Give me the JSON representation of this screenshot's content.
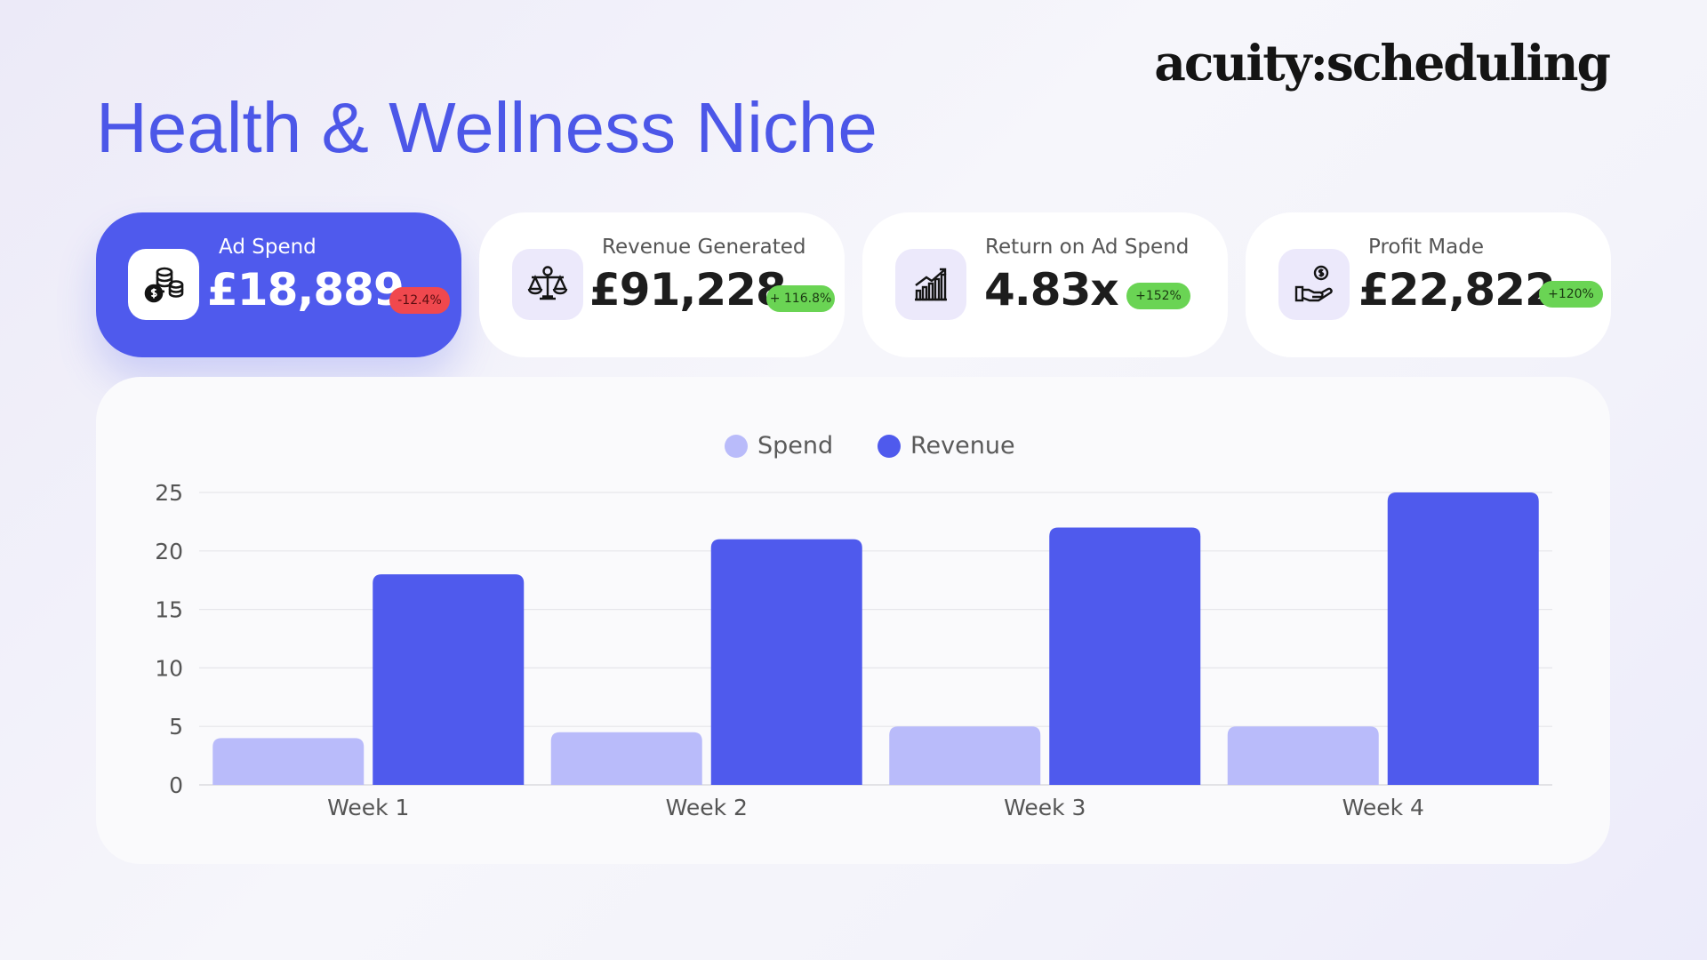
{
  "brand": {
    "logo_text": "acuity:scheduling"
  },
  "page": {
    "title": "Health & Wellness Niche"
  },
  "cards": [
    {
      "label": "Ad Spend",
      "value": "£18,889",
      "badge": "-12.4%",
      "icon": "coins-icon",
      "trend": "negative"
    },
    {
      "label": "Revenue Generated",
      "value": "£91,228",
      "badge": "+ 116.8%",
      "icon": "scales-icon",
      "trend": "positive"
    },
    {
      "label": "Return on Ad Spend",
      "value": "4.83x",
      "badge": "+152%",
      "icon": "growth-chart-icon",
      "trend": "positive"
    },
    {
      "label": "Profit Made",
      "value": "£22,822",
      "badge": "+120%",
      "icon": "hand-money-icon",
      "trend": "positive"
    }
  ],
  "colors": {
    "accent": "#4f5aed",
    "spend": "#b9bbfa",
    "revenue": "#4f5aed",
    "positive_badge": "#6ad454",
    "negative_badge": "#f0484e"
  },
  "chart_data": {
    "type": "bar",
    "categories": [
      "Week 1",
      "Week 2",
      "Week 3",
      "Week 4"
    ],
    "series": [
      {
        "name": "Spend",
        "values": [
          4,
          4.5,
          5,
          5
        ]
      },
      {
        "name": "Revenue",
        "values": [
          18,
          21,
          22,
          25
        ]
      }
    ],
    "ylim": [
      0,
      25
    ],
    "yticks": [
      0,
      5,
      10,
      15,
      20,
      25
    ],
    "grid": true,
    "legend": "top-center"
  }
}
